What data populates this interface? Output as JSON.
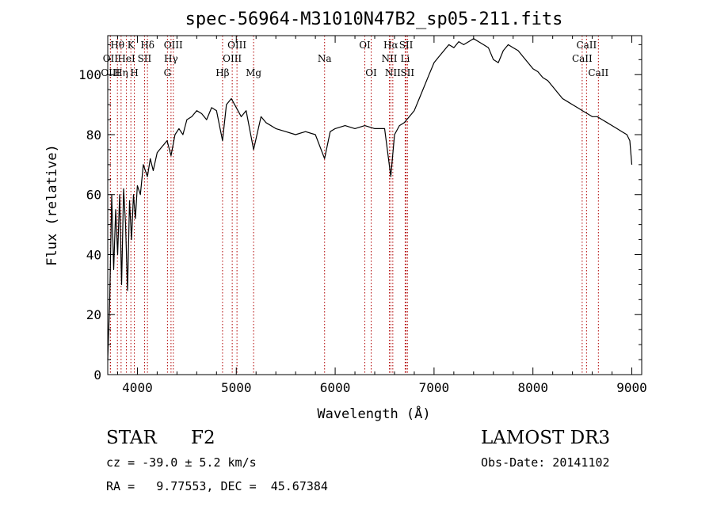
{
  "chart_data": {
    "type": "line",
    "title": "spec-56964-M31010N47B2_sp05-211.fits",
    "xlabel": "Wavelength (Å)",
    "ylabel": "Flux (relative)",
    "xlim": [
      3700,
      9100
    ],
    "ylim": [
      0,
      113
    ],
    "xticks": [
      4000,
      5000,
      6000,
      7000,
      8000,
      9000
    ],
    "yticks": [
      0,
      20,
      40,
      60,
      80,
      100
    ],
    "grid": false,
    "series": [
      {
        "name": "spectrum",
        "color": "#000000",
        "x": [
          3700,
          3720,
          3740,
          3760,
          3780,
          3800,
          3820,
          3840,
          3860,
          3880,
          3900,
          3920,
          3940,
          3960,
          3980,
          4000,
          4030,
          4060,
          4101,
          4130,
          4160,
          4200,
          4250,
          4300,
          4340,
          4380,
          4420,
          4460,
          4500,
          4550,
          4600,
          4650,
          4700,
          4750,
          4800,
          4861,
          4900,
          4950,
          5000,
          5050,
          5100,
          5175,
          5250,
          5300,
          5400,
          5500,
          5600,
          5700,
          5800,
          5893,
          5950,
          6000,
          6100,
          6200,
          6300,
          6400,
          6500,
          6563,
          6600,
          6650,
          6700,
          6750,
          6800,
          6850,
          6900,
          6950,
          7000,
          7050,
          7100,
          7150,
          7200,
          7250,
          7300,
          7350,
          7400,
          7450,
          7500,
          7550,
          7600,
          7650,
          7700,
          7750,
          7800,
          7850,
          7900,
          7950,
          8000,
          8050,
          8100,
          8150,
          8200,
          8250,
          8300,
          8350,
          8400,
          8450,
          8500,
          8550,
          8600,
          8650,
          8700,
          8750,
          8800,
          8850,
          8900,
          8950,
          8980,
          9000
        ],
        "values": [
          5,
          25,
          60,
          35,
          55,
          40,
          60,
          30,
          62,
          50,
          28,
          58,
          45,
          60,
          52,
          63,
          60,
          70,
          66,
          72,
          68,
          74,
          76,
          78,
          73,
          80,
          82,
          80,
          85,
          86,
          88,
          87,
          85,
          89,
          88,
          78,
          90,
          92,
          89,
          86,
          88,
          75,
          86,
          84,
          82,
          81,
          80,
          81,
          80,
          72,
          81,
          82,
          83,
          82,
          83,
          82,
          82,
          66,
          80,
          83,
          84,
          86,
          88,
          92,
          96,
          100,
          104,
          106,
          108,
          110,
          109,
          111,
          110,
          111,
          112,
          111,
          110,
          109,
          105,
          104,
          108,
          110,
          109,
          108,
          106,
          104,
          102,
          101,
          99,
          98,
          96,
          94,
          92,
          91,
          90,
          89,
          88,
          87,
          86,
          86,
          85,
          84,
          83,
          82,
          81,
          80,
          78,
          70
        ]
      }
    ],
    "lines": [
      {
        "name": "Hθ",
        "wavelength": 3798,
        "row": 1
      },
      {
        "name": "OII",
        "wavelength": 3727,
        "row": 2
      },
      {
        "name": "OIII",
        "wavelength": 3727,
        "row": 3
      },
      {
        "name": "K",
        "wavelength": 3934,
        "row": 1
      },
      {
        "name": "Hη",
        "wavelength": 3835,
        "row": 3
      },
      {
        "name": "HeI",
        "wavelength": 3889,
        "row": 2
      },
      {
        "name": "SII",
        "wavelength": 4072,
        "row": 2
      },
      {
        "name": "H",
        "wavelength": 3969,
        "row": 3
      },
      {
        "name": "Hδ",
        "wavelength": 4102,
        "row": 1
      },
      {
        "name": "OIII",
        "wavelength": 4363,
        "row": 1
      },
      {
        "name": "Hγ",
        "wavelength": 4340,
        "row": 2
      },
      {
        "name": "G",
        "wavelength": 4304,
        "row": 3
      },
      {
        "name": "Hβ",
        "wavelength": 4861,
        "row": 3
      },
      {
        "name": "OIII",
        "wavelength": 5007,
        "row": 1
      },
      {
        "name": "OIII",
        "wavelength": 4959,
        "row": 2
      },
      {
        "name": "Mg",
        "wavelength": 5175,
        "row": 3
      },
      {
        "name": "Na",
        "wavelength": 5893,
        "row": 2
      },
      {
        "name": "OI",
        "wavelength": 6300,
        "row": 1
      },
      {
        "name": "OI",
        "wavelength": 6364,
        "row": 3
      },
      {
        "name": "Hα",
        "wavelength": 6563,
        "row": 1
      },
      {
        "name": "NII",
        "wavelength": 6548,
        "row": 2
      },
      {
        "name": "NII",
        "wavelength": 6583,
        "row": 3
      },
      {
        "name": "SII",
        "wavelength": 6717,
        "row": 1
      },
      {
        "name": "Li",
        "wavelength": 6708,
        "row": 2
      },
      {
        "name": "SII",
        "wavelength": 6731,
        "row": 3
      },
      {
        "name": "CaII",
        "wavelength": 8542,
        "row": 1
      },
      {
        "name": "CaII",
        "wavelength": 8498,
        "row": 2
      },
      {
        "name": "CaII",
        "wavelength": 8662,
        "row": 3
      }
    ]
  },
  "info": {
    "object_class": "STAR",
    "subclass": "F2",
    "survey": "LAMOST DR3",
    "redshift_label": "cz = -39.0 ± 5.2 km/s",
    "obs_date_label": "Obs-Date: 20141102",
    "coords_label": "RA =   9.77553, DEC =  45.67384"
  }
}
